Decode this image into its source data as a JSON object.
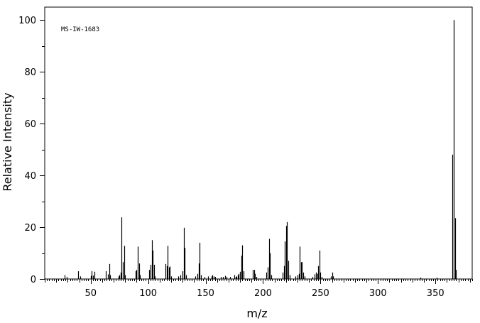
{
  "chart_data": {
    "type": "bar",
    "title": "",
    "annotation": "MS-IW-1683",
    "xlabel": "m/z",
    "ylabel": "Relative Intensity",
    "xlim": [
      10,
      382
    ],
    "ylim": [
      0,
      105
    ],
    "x_ticks": [
      50,
      100,
      150,
      200,
      250,
      300,
      350
    ],
    "y_ticks": [
      0,
      20,
      40,
      60,
      80,
      100
    ],
    "grid": false,
    "series": [
      {
        "peaks": [
          [
            27,
            1.5
          ],
          [
            29,
            0.8
          ],
          [
            39,
            3.0
          ],
          [
            41,
            1.0
          ],
          [
            50,
            1.2
          ],
          [
            51,
            3.0
          ],
          [
            52,
            1.3
          ],
          [
            53,
            2.8
          ],
          [
            63,
            3.0
          ],
          [
            65,
            1.8
          ],
          [
            66,
            5.8
          ],
          [
            67,
            1.5
          ],
          [
            74,
            1.0
          ],
          [
            75,
            1.5
          ],
          [
            76,
            2.5
          ],
          [
            77,
            23.8
          ],
          [
            78,
            6.5
          ],
          [
            79,
            12.8
          ],
          [
            80,
            1.5
          ],
          [
            89,
            3.0
          ],
          [
            90,
            3.5
          ],
          [
            91,
            12.5
          ],
          [
            92,
            6.0
          ],
          [
            93,
            1.5
          ],
          [
            101,
            3.5
          ],
          [
            102,
            5.5
          ],
          [
            103,
            15.0
          ],
          [
            104,
            11.0
          ],
          [
            105,
            5.5
          ],
          [
            106,
            1.0
          ],
          [
            115,
            5.8
          ],
          [
            116,
            5.0
          ],
          [
            117,
            12.8
          ],
          [
            118,
            4.5
          ],
          [
            119,
            4.8
          ],
          [
            120,
            1.0
          ],
          [
            126,
            1.0
          ],
          [
            128,
            1.5
          ],
          [
            130,
            3.0
          ],
          [
            131,
            19.8
          ],
          [
            132,
            12.0
          ],
          [
            133,
            1.5
          ],
          [
            141,
            1.0
          ],
          [
            143,
            2.0
          ],
          [
            144,
            6.0
          ],
          [
            145,
            14.0
          ],
          [
            146,
            1.5
          ],
          [
            149,
            0.8
          ],
          [
            152,
            1.0
          ],
          [
            155,
            1.0
          ],
          [
            156,
            1.5
          ],
          [
            157,
            1.0
          ],
          [
            158,
            0.8
          ],
          [
            163,
            0.8
          ],
          [
            165,
            0.8
          ],
          [
            167,
            1.2
          ],
          [
            168,
            0.8
          ],
          [
            171,
            0.8
          ],
          [
            175,
            1.5
          ],
          [
            176,
            0.8
          ],
          [
            177,
            1.0
          ],
          [
            178,
            1.5
          ],
          [
            179,
            2.0
          ],
          [
            180,
            2.8
          ],
          [
            181,
            9.0
          ],
          [
            182,
            13.0
          ],
          [
            183,
            3.0
          ],
          [
            191,
            3.5
          ],
          [
            192,
            3.5
          ],
          [
            193,
            2.0
          ],
          [
            194,
            0.8
          ],
          [
            203,
            2.5
          ],
          [
            204,
            4.5
          ],
          [
            205,
            15.5
          ],
          [
            206,
            10.0
          ],
          [
            207,
            1.5
          ],
          [
            217,
            2.5
          ],
          [
            218,
            5.0
          ],
          [
            219,
            14.5
          ],
          [
            220,
            20.5
          ],
          [
            221,
            22.0
          ],
          [
            222,
            7.0
          ],
          [
            223,
            1.5
          ],
          [
            228,
            1.0
          ],
          [
            230,
            1.5
          ],
          [
            231,
            2.0
          ],
          [
            232,
            12.5
          ],
          [
            233,
            6.5
          ],
          [
            234,
            6.5
          ],
          [
            235,
            2.5
          ],
          [
            236,
            1.0
          ],
          [
            243,
            0.8
          ],
          [
            245,
            1.8
          ],
          [
            246,
            2.5
          ],
          [
            247,
            2.0
          ],
          [
            248,
            5.0
          ],
          [
            249,
            11.0
          ],
          [
            250,
            2.5
          ],
          [
            251,
            0.8
          ],
          [
            259,
            1.0
          ],
          [
            260,
            2.5
          ],
          [
            261,
            1.0
          ],
          [
            337,
            0.5
          ],
          [
            351,
            0.5
          ],
          [
            365,
            48.0
          ],
          [
            366,
            100.0
          ],
          [
            367,
            23.5
          ],
          [
            368,
            3.5
          ]
        ]
      }
    ]
  }
}
